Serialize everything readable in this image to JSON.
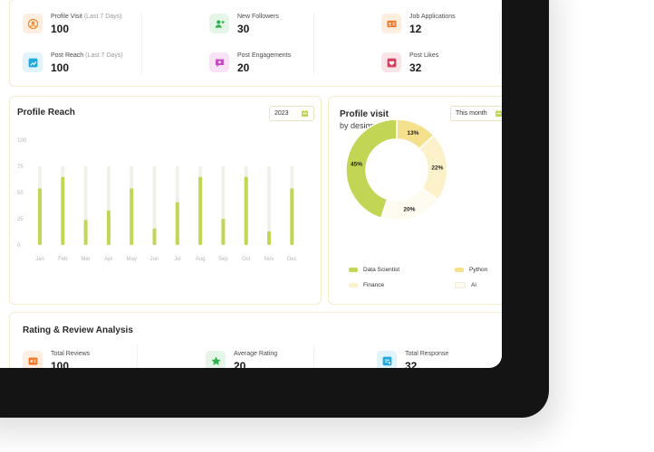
{
  "stats": [
    {
      "label": "Profile Visit",
      "note": "(Last 7 Days)",
      "value": "100",
      "icon": "user-circle-icon",
      "bg": "#fdeee0",
      "fg": "#f08a2b"
    },
    {
      "label": "New Followers",
      "note": "",
      "value": "30",
      "icon": "add-user-icon",
      "bg": "#e5f6e8",
      "fg": "#2fb14c"
    },
    {
      "label": "Job Applications",
      "note": "",
      "value": "12",
      "icon": "id-card-icon",
      "bg": "#fdeee0",
      "fg": "#f07a2b"
    },
    {
      "label": "Post Reach",
      "note": "(Last 7 Days)",
      "value": "100",
      "icon": "chart-up-icon",
      "bg": "#e2f4fb",
      "fg": "#21a8dc"
    },
    {
      "label": "Post Engagements",
      "note": "",
      "value": "20",
      "icon": "chat-icon",
      "bg": "#f7e3f5",
      "fg": "#c64bc0"
    },
    {
      "label": "Post Likes",
      "note": "",
      "value": "32",
      "icon": "heart-icon",
      "bg": "#fbe4e8",
      "fg": "#d5415e"
    }
  ],
  "reach": {
    "title": "Profile Reach",
    "year": "2023",
    "calendar_icon": "calendar-icon"
  },
  "visit": {
    "title": "Profile visit",
    "subtitle": "by designation",
    "period": "This month",
    "calendar_icon": "calendar-icon"
  },
  "rating": {
    "title": "Rating & Review Analysis",
    "items": [
      {
        "label": "Total Reviews",
        "value": "100",
        "icon": "review-icon",
        "bg": "#fdeee0",
        "fg": "#f0782b"
      },
      {
        "label": "Average Rating",
        "value": "20",
        "icon": "star-icon",
        "bg": "#e5f6e8",
        "fg": "#2fb14c"
      },
      {
        "label": "Total Response",
        "value": "32",
        "icon": "response-icon",
        "bg": "#e2f4fb",
        "fg": "#21a8dc"
      }
    ]
  },
  "chart_data": [
    {
      "type": "bar",
      "title": "Profile Reach",
      "categories": [
        "Jan",
        "Feb",
        "Mar",
        "Apr",
        "May",
        "Jun",
        "Jul",
        "Aug",
        "Sep",
        "Oct",
        "Nov",
        "Dec"
      ],
      "values": [
        54,
        65,
        24,
        33,
        54,
        16,
        41,
        65,
        25,
        65,
        13,
        54
      ],
      "ylim": [
        0,
        100
      ],
      "yticks": [
        0,
        25,
        50,
        75,
        100
      ],
      "bar_color": "#c3d555",
      "track_color": "#f1f1ea",
      "grid": false
    },
    {
      "type": "pie",
      "title": "Profile visit",
      "subtitle": "by designation",
      "categories": [
        "Data Scientist",
        "Python",
        "Finance",
        "Ai"
      ],
      "values": [
        45,
        13,
        22,
        20
      ],
      "labels": [
        "45%",
        "13%",
        "22%",
        "20%"
      ],
      "colors": [
        "#c3d555",
        "#f5e08e",
        "#fbf2cc",
        "#fefbf0"
      ],
      "donut": true,
      "legend": "bottom"
    }
  ]
}
